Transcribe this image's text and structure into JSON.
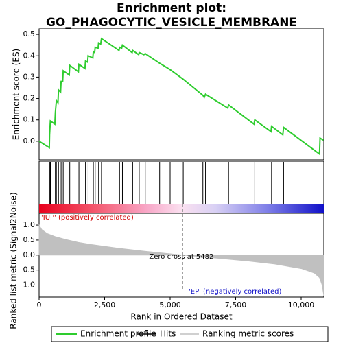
{
  "title": [
    "Enrichment plot:",
    "GO_PHAGOCYTIC_VESICLE_MEMBRANE"
  ],
  "chart_data": [
    {
      "type": "line",
      "ylabel": "Enrichment score (ES)",
      "xlim": [
        0,
        10864
      ],
      "ylim": [
        -0.087,
        0.526
      ],
      "yticks": [
        {
          "value": 0,
          "label": "0.0"
        },
        0.1,
        0.2,
        0.3,
        0.4,
        0.5
      ],
      "series": [
        {
          "name": "Enrichment profile",
          "color": "#2ecc2e",
          "x": [
            0,
            390,
            400,
            430,
            600,
            620,
            660,
            720,
            740,
            820,
            840,
            900,
            920,
            1150,
            1170,
            1500,
            1520,
            1750,
            1770,
            1850,
            1870,
            2050,
            2070,
            2120,
            2140,
            2250,
            2270,
            2350,
            2380,
            3050,
            3070,
            3150,
            3180,
            3550,
            3570,
            3800,
            3820,
            4000,
            4050,
            4600,
            5000,
            5500,
            6200,
            6250,
            6300,
            6350,
            7200,
            7230,
            8200,
            8230,
            8850,
            8870,
            9300,
            9330,
            10700,
            10720,
            10850
          ],
          "values": [
            0,
            -0.03,
            0.03,
            0.095,
            0.08,
            0.135,
            0.19,
            0.18,
            0.24,
            0.23,
            0.28,
            0.28,
            0.33,
            0.31,
            0.355,
            0.325,
            0.36,
            0.34,
            0.375,
            0.37,
            0.4,
            0.39,
            0.42,
            0.415,
            0.44,
            0.435,
            0.46,
            0.455,
            0.48,
            0.425,
            0.44,
            0.435,
            0.45,
            0.415,
            0.425,
            0.405,
            0.415,
            0.405,
            0.41,
            0.365,
            0.335,
            0.29,
            0.22,
            0.215,
            0.205,
            0.22,
            0.155,
            0.17,
            0.08,
            0.1,
            0.045,
            0.07,
            0.03,
            0.065,
            -0.06,
            0.015,
            0.005
          ]
        }
      ]
    },
    {
      "type": "hits",
      "xlim": [
        0,
        10864
      ],
      "series": [
        {
          "name": "Hits",
          "color": "#000000",
          "x": [
            390,
            420,
            440,
            620,
            660,
            740,
            840,
            920,
            1170,
            1520,
            1770,
            1870,
            2070,
            2140,
            2270,
            2380,
            3070,
            3180,
            3570,
            3820,
            4050,
            4600,
            5000,
            5500,
            6250,
            6350,
            7230,
            8230,
            8870,
            9330,
            10720
          ]
        }
      ]
    },
    {
      "type": "area",
      "ylabel": "Ranked list metric (Signal2Noise)",
      "xlabel": "Rank in Ordered Dataset",
      "xlim": [
        0,
        10864
      ],
      "ylim": [
        -1.4,
        1.39
      ],
      "xticks": [
        0,
        {
          "value": 2500,
          "label": "2,500"
        },
        {
          "value": 5000,
          "label": "5,000"
        },
        {
          "value": 7500,
          "label": "7,500"
        },
        {
          "value": 10000,
          "label": "10,000"
        }
      ],
      "yticks": [
        {
          "value": 1,
          "label": "1.0"
        },
        0.5,
        {
          "value": 0,
          "label": "0.0"
        },
        -0.5,
        {
          "value": -1,
          "label": "-1.0"
        }
      ],
      "series": [
        {
          "name": "Ranking metric scores",
          "color": "#c0c0c0",
          "x": [
            0,
            100,
            300,
            600,
            1000,
            1500,
            2000,
            3000,
            4000,
            5000,
            5482,
            6000,
            7000,
            8000,
            9000,
            10000,
            10500,
            10700,
            10800,
            10864
          ],
          "values": [
            1.0,
            0.85,
            0.72,
            0.62,
            0.52,
            0.42,
            0.35,
            0.23,
            0.13,
            0.04,
            0,
            -0.04,
            -0.12,
            -0.2,
            -0.3,
            -0.45,
            -0.6,
            -0.75,
            -1.0,
            -1.35
          ]
        }
      ],
      "zero_cross": {
        "value": 5482,
        "label": "Zero cross at 5482"
      },
      "positive_label": "'IUP' (positively correlated)",
      "negative_label": "'EP' (negatively correlated)"
    }
  ]
}
